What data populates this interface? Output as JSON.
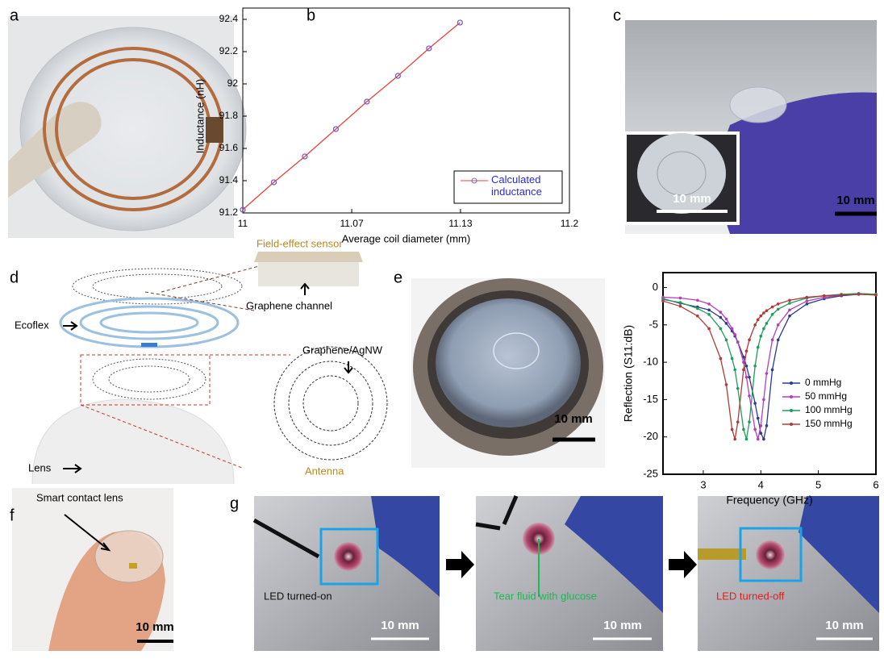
{
  "panels": [
    "a",
    "b",
    "c",
    "d",
    "e",
    "f",
    "g"
  ],
  "scale_bars": [
    "10 mm",
    "10 mm",
    "10 mm",
    "10 mm",
    "10 mm",
    "10 mm",
    "10 mm"
  ],
  "annotations": {
    "field_effect_sensor": "Field-effect sensor",
    "ecoflex": "Ecoflex",
    "graphene_channel": "Graphene channel",
    "graphene_agnw": "Graphene/AgNW",
    "lens": "Lens",
    "antenna": "Antenna",
    "smart_contact_lens": "Smart contact lens",
    "led_on": "LED turned-on",
    "tear_fluid": "Tear fluid with glucose",
    "led_off": "LED turned-off"
  },
  "chart_data": [
    {
      "type": "line",
      "marker": "open-circle",
      "x": [
        11,
        11.019,
        11.038,
        11.057,
        11.076,
        11.095,
        11.114,
        11.133
      ],
      "series": [
        {
          "name": "Calculated inductance",
          "color": "#e8433f",
          "marker_color": "#7b5fc4",
          "values": [
            91.22,
            91.39,
            91.55,
            91.72,
            91.89,
            92.05,
            92.22,
            92.38
          ]
        }
      ],
      "xlim": [
        11,
        11.2
      ],
      "xticks": [
        11,
        {
          "value": 11.0667,
          "label": "11.07"
        },
        {
          "value": 11.1333,
          "label": "11.13"
        },
        11.2
      ],
      "ylim": [
        91.2,
        92.4
      ],
      "yticks": [
        91.2,
        91.4,
        91.6,
        91.8,
        92,
        92.2,
        92.4
      ],
      "xlabel": "Average coil diameter (mm)",
      "ylabel": "Inductance (nH)",
      "legend": "lower right"
    },
    {
      "type": "line",
      "marker": "dot",
      "x": [
        2.3,
        2.6,
        2.9,
        3.1,
        3.3,
        3.4,
        3.5,
        3.55,
        3.6,
        3.7,
        3.75,
        3.8,
        3.9,
        3.95,
        4.0,
        4.05,
        4.1,
        4.2,
        4.3,
        4.5,
        4.8,
        5.1,
        5.4,
        5.7,
        6.0
      ],
      "series": [
        {
          "name": "0 mmHg",
          "color": "#2b3a8f",
          "values": [
            -1.5,
            -2.1,
            -2.6,
            -3.0,
            -4.0,
            -4.8,
            -5.8,
            -6.5,
            -7.3,
            -9.3,
            -10.5,
            -12,
            -15.5,
            -17.5,
            -19.5,
            -20.3,
            -18.5,
            -11,
            -7,
            -3.8,
            -2.2,
            -1.5,
            -1.1,
            -0.9,
            -1.0
          ]
        },
        {
          "name": "50 mmHg",
          "color": "#b43fb8",
          "values": [
            -1.3,
            -1.4,
            -1.7,
            -2.2,
            -3.3,
            -4.2,
            -5.5,
            -6.3,
            -7.3,
            -10,
            -12,
            -14.5,
            -19,
            -20.3,
            -18.5,
            -15,
            -11.5,
            -7,
            -5,
            -3,
            -1.8,
            -1.3,
            -1.0,
            -0.8,
            -0.9
          ]
        },
        {
          "name": "100 mmHg",
          "color": "#1e9e5a",
          "values": [
            -1.6,
            -2.0,
            -2.8,
            -3.6,
            -5.5,
            -7,
            -9.5,
            -11,
            -13.5,
            -19,
            -20.3,
            -18,
            -10.5,
            -8,
            -6.5,
            -5.5,
            -4.8,
            -3.6,
            -2.9,
            -2.1,
            -1.4,
            -1.1,
            -0.9,
            -0.8,
            -0.9
          ]
        },
        {
          "name": "150 mmHg",
          "color": "#b03a3a",
          "values": [
            -1.8,
            -2.5,
            -3.8,
            -5.5,
            -9.5,
            -13,
            -19,
            -20.3,
            -18,
            -11,
            -8.5,
            -7,
            -5,
            -4.3,
            -3.8,
            -3.4,
            -3.1,
            -2.6,
            -2.2,
            -1.7,
            -1.3,
            -1.1,
            -1.0,
            -0.9,
            -1.0
          ]
        }
      ],
      "xlim": [
        2.3,
        6
      ],
      "xticks": [
        3,
        4,
        5,
        6
      ],
      "ylim": [
        -25,
        2
      ],
      "yticks": [
        0,
        -5,
        -10,
        -15,
        -20,
        -25
      ],
      "xlabel": "Frequency (GHz)",
      "ylabel": "Reflection (S11:dB)",
      "legend": "lower right"
    }
  ]
}
